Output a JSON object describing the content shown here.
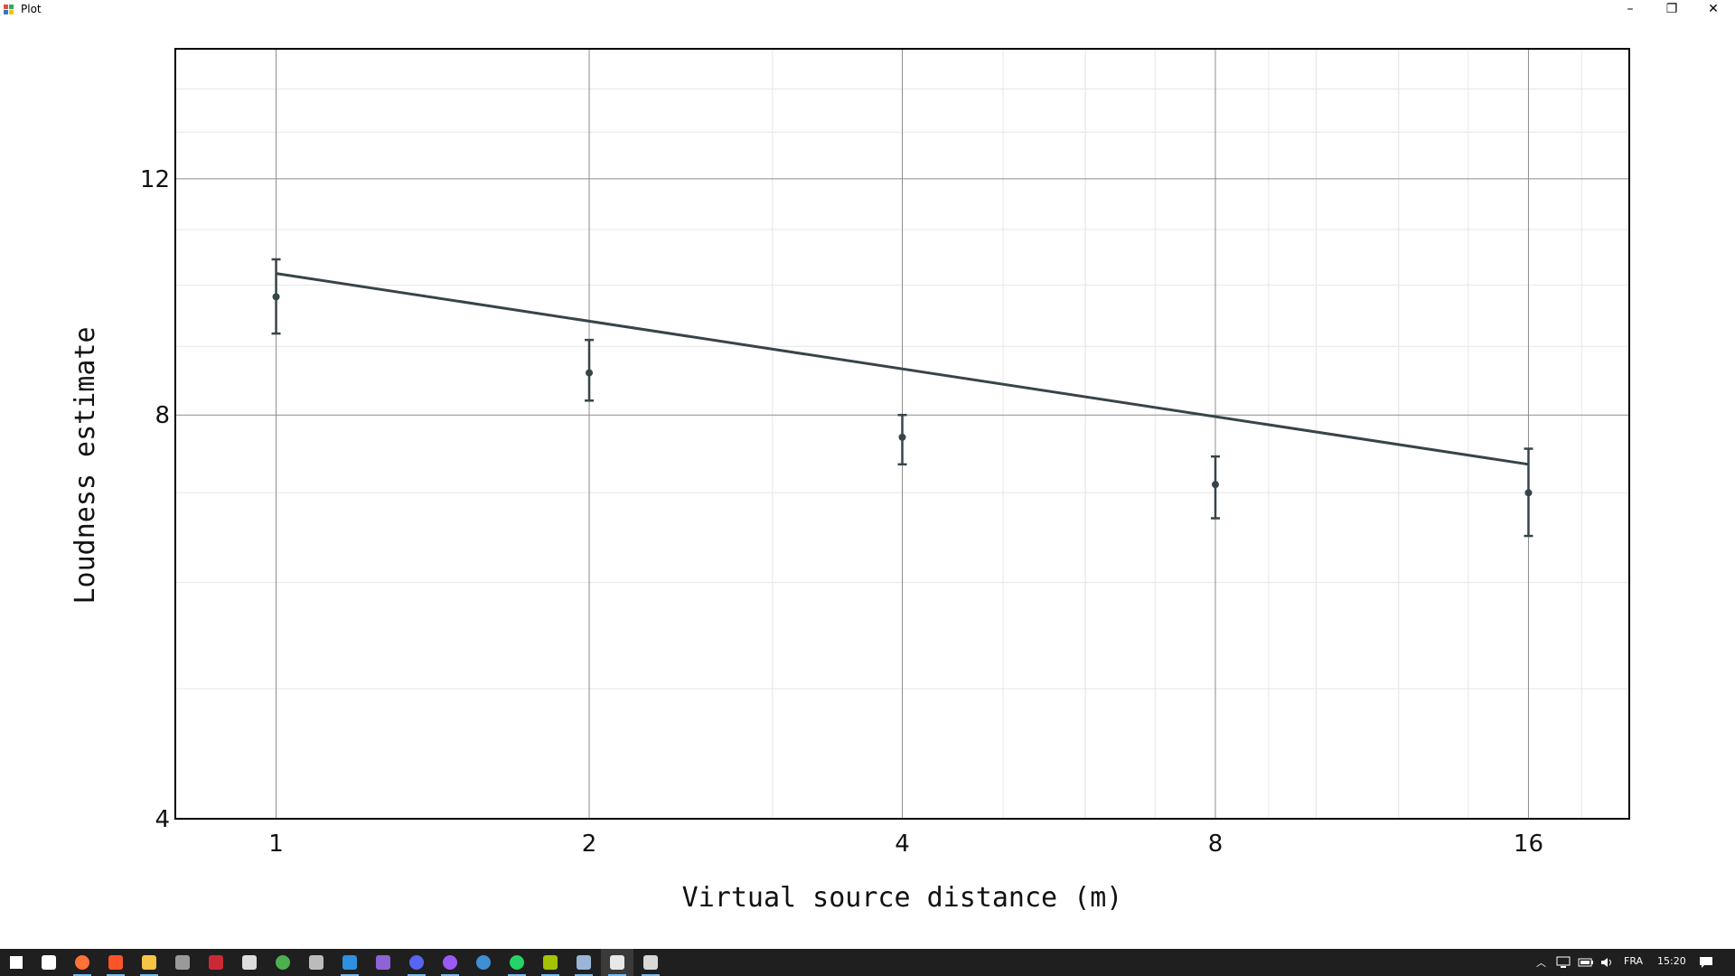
{
  "window": {
    "title": "Plot",
    "controls": {
      "minimize": "–",
      "maximize": "❐",
      "close": "✕"
    }
  },
  "chart_data": {
    "type": "line",
    "title": "",
    "xlabel": "Virtual source distance (m)",
    "ylabel": "Loudness estimate",
    "x_scale": "log2",
    "y_scale": "log",
    "xlim": [
      0.8,
      20
    ],
    "ylim": [
      4,
      15
    ],
    "xticks": [
      1,
      2,
      4,
      8,
      16
    ],
    "xtick_labels": [
      "1",
      "2",
      "4",
      "8",
      "16"
    ],
    "yticks": [
      4,
      8,
      12
    ],
    "ytick_labels": [
      "4",
      "8",
      "12"
    ],
    "grid": true,
    "series": [
      {
        "kind": "errorbar",
        "x": [
          1,
          2,
          4,
          8,
          16
        ],
        "y": [
          9.8,
          8.6,
          7.7,
          7.1,
          7.0
        ],
        "y_low": [
          9.2,
          8.2,
          7.35,
          6.7,
          6.5
        ],
        "y_high": [
          10.45,
          9.1,
          8.0,
          7.45,
          7.55
        ],
        "color": "#36454a"
      },
      {
        "kind": "line",
        "x": [
          1,
          16
        ],
        "y": [
          10.2,
          7.35
        ],
        "color": "#36454a"
      }
    ]
  },
  "taskbar": {
    "items": [
      "start",
      "task-view",
      "firefox",
      "brave",
      "file-explorer",
      "app-8",
      "zotero",
      "cube-app",
      "chrome",
      "inkscape",
      "vscode",
      "visual-studio",
      "discord",
      "github-desktop",
      "app-r",
      "whatsapp",
      "notepad-plus",
      "calculator",
      "plot-window",
      "paint"
    ],
    "language": "FRA",
    "time": "15:20"
  }
}
